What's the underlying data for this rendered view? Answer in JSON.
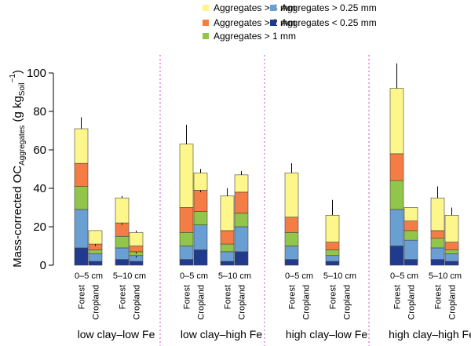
{
  "chart_data": {
    "type": "bar",
    "stacked": true,
    "ylabel": {
      "prefix": "Mass-corrected OC",
      "subscript": "Aggregates",
      "unit_open": " (g kg",
      "unit_sub": "Soil",
      "unit_sup": "−1",
      "unit_close": ")"
    },
    "ylim": [
      0,
      100
    ],
    "yticks": [
      "0",
      "20",
      "40",
      "60",
      "80",
      "100"
    ],
    "ytick_values": [
      0,
      20,
      40,
      60,
      80,
      100
    ],
    "legend": {
      "placement": "top-center",
      "entries": [
        {
          "key": "gt4",
          "label": "Aggregates > 4 mm",
          "color": "#fdf68a"
        },
        {
          "key": "gt2",
          "label": "Aggregates > 2 mm",
          "color": "#f47c45"
        },
        {
          "key": "gt1",
          "label": "Aggregates > 1 mm",
          "color": "#92c64b"
        },
        {
          "key": "gt025",
          "label": "Aggregates > 0.25 mm",
          "color": "#6a9fd3"
        },
        {
          "key": "lt025",
          "label": "Aggregates < 0.25 mm",
          "color": "#203b8d"
        }
      ]
    },
    "stack_order": [
      "lt025",
      "gt025",
      "gt1",
      "gt2",
      "gt4"
    ],
    "groups": [
      {
        "label": "low clay–low Fe",
        "depths": [
          {
            "label": "0–5 cm",
            "bars": [
              {
                "land_use": "Forest",
                "values": [
                  9,
                  20,
                  12,
                  12,
                  18
                ],
                "errors": [
                  9,
                  29,
                  41,
                  53,
                  77
                ]
              },
              {
                "land_use": "Cropland",
                "values": [
                  2,
                  4,
                  2,
                  3,
                  7
                ],
                "errors": [
                  null,
                  null,
                  8,
                  10,
                  null
                ]
              }
            ]
          },
          {
            "label": "5–10 cm",
            "bars": [
              {
                "land_use": "Forest",
                "values": [
                  3,
                  6,
                  6,
                  7,
                  13
                ],
                "errors": [
                  3,
                  9,
                  15,
                  21,
                  36
                ]
              },
              {
                "land_use": "Cropland",
                "values": [
                  2,
                  3,
                  2,
                  3,
                  7
                ],
                "errors": [
                  null,
                  4,
                  6,
                  null,
                  18
                ]
              }
            ]
          }
        ]
      },
      {
        "label": "low clay–high Fe",
        "depths": [
          {
            "label": "0–5 cm",
            "bars": [
              {
                "land_use": "Forest",
                "values": [
                  3,
                  7,
                  7,
                  13,
                  33
                ],
                "errors": [
                  3,
                  10,
                  17,
                  30,
                  73
                ]
              },
              {
                "land_use": "Cropland",
                "values": [
                  8,
                  13,
                  7,
                  11,
                  9
                ],
                "errors": [
                  null,
                  21,
                  28,
                  38,
                  50
                ]
              }
            ]
          },
          {
            "label": "5–10 cm",
            "bars": [
              {
                "land_use": "Forest",
                "values": [
                  2,
                  5,
                  4,
                  7,
                  18
                ],
                "errors": [
                  null,
                  7,
                  11,
                  18,
                  40
                ]
              },
              {
                "land_use": "Cropland",
                "values": [
                  7,
                  13,
                  7,
                  11,
                  9
                ],
                "errors": [
                  null,
                  20,
                  27,
                  38,
                  49
                ]
              }
            ]
          }
        ]
      },
      {
        "label": "high clay–low Fe",
        "depths": [
          {
            "label": "0–5 cm",
            "bars": [
              {
                "land_use": "Forest",
                "values": [
                  3,
                  7,
                  7,
                  8,
                  23
                ],
                "errors": [
                  3,
                  10,
                  17,
                  25,
                  53
                ]
              },
              {
                "land_use": "Cropland",
                "values": [
                  0,
                  0,
                  0,
                  0,
                  0
                ],
                "errors": [
                  null,
                  null,
                  null,
                  null,
                  null
                ]
              }
            ]
          },
          {
            "label": "5–10 cm",
            "bars": [
              {
                "land_use": "Forest",
                "values": [
                  2,
                  3,
                  3,
                  4,
                  14
                ],
                "errors": [
                  null,
                  5,
                  8,
                  12,
                  34
                ]
              },
              {
                "land_use": "Cropland",
                "values": [
                  0,
                  0,
                  0,
                  0,
                  0
                ],
                "errors": [
                  null,
                  null,
                  null,
                  null,
                  null
                ]
              }
            ]
          }
        ]
      },
      {
        "label": "high clay–high Fe",
        "depths": [
          {
            "label": "0–5 cm",
            "bars": [
              {
                "land_use": "Forest",
                "values": [
                  10,
                  19,
                  15,
                  14,
                  34
                ],
                "errors": [
                  10,
                  29,
                  44,
                  61,
                  105
                ]
              },
              {
                "land_use": "Cropland",
                "values": [
                  3,
                  10,
                  5,
                  5,
                  7
                ],
                "errors": [
                  3,
                  13,
                  18,
                  23,
                  null
                ]
              }
            ]
          },
          {
            "label": "5–10 cm",
            "bars": [
              {
                "land_use": "Forest",
                "values": [
                  3,
                  6,
                  5,
                  4,
                  17
                ],
                "errors": [
                  3,
                  9,
                  14,
                  18,
                  41
                ]
              },
              {
                "land_use": "Cropland",
                "values": [
                  2,
                  4,
                  2,
                  4,
                  14
                ],
                "errors": [
                  2,
                  6,
                  9,
                  12,
                  30
                ]
              }
            ]
          }
        ]
      }
    ]
  }
}
